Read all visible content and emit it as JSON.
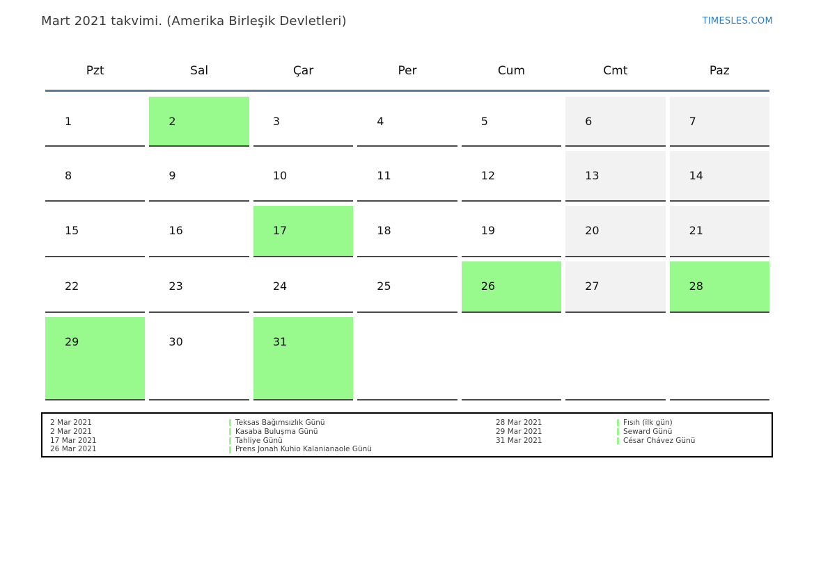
{
  "header": {
    "title": "Mart 2021 takvimi. (Amerika Birleşik Devletleri)",
    "brand": "TIMESLES.COM"
  },
  "colors": {
    "highlight_green": "#98f98c",
    "weekend_gray": "#f2f2f2",
    "header_line_blue": "#5a7a9b",
    "brand_blue": "#2d7cbf",
    "cell_border": "#4a4a4a"
  },
  "calendar": {
    "day_headers": [
      "Pzt",
      "Sal",
      "Çar",
      "Per",
      "Cum",
      "Cmt",
      "Paz"
    ],
    "weeks": [
      [
        {
          "day": "1"
        },
        {
          "day": "2",
          "highlight": true
        },
        {
          "day": "3"
        },
        {
          "day": "4"
        },
        {
          "day": "5"
        },
        {
          "day": "6",
          "weekend": true
        },
        {
          "day": "7",
          "weekend": true
        }
      ],
      [
        {
          "day": "8"
        },
        {
          "day": "9"
        },
        {
          "day": "10"
        },
        {
          "day": "11"
        },
        {
          "day": "12"
        },
        {
          "day": "13",
          "weekend": true
        },
        {
          "day": "14",
          "weekend": true
        }
      ],
      [
        {
          "day": "15"
        },
        {
          "day": "16"
        },
        {
          "day": "17",
          "highlight": true
        },
        {
          "day": "18"
        },
        {
          "day": "19"
        },
        {
          "day": "20",
          "weekend": true
        },
        {
          "day": "21",
          "weekend": true
        }
      ],
      [
        {
          "day": "22"
        },
        {
          "day": "23"
        },
        {
          "day": "24"
        },
        {
          "day": "25"
        },
        {
          "day": "26",
          "highlight": true
        },
        {
          "day": "27",
          "weekend": true
        },
        {
          "day": "28",
          "highlight": true
        }
      ],
      [
        {
          "day": "29",
          "highlight": true
        },
        {
          "day": "30"
        },
        {
          "day": "31",
          "highlight": true
        },
        {
          "day": "",
          "empty": true
        },
        {
          "day": "",
          "empty": true
        },
        {
          "day": "",
          "empty": true
        },
        {
          "day": "",
          "empty": true
        }
      ]
    ]
  },
  "legend": {
    "groups": [
      {
        "entries": [
          {
            "date": "2 Mar 2021",
            "name": "Teksas Bağımsızlık Günü"
          },
          {
            "date": "2 Mar 2021",
            "name": "Kasaba Buluşma Günü"
          },
          {
            "date": "17 Mar 2021",
            "name": "Tahliye Günü"
          },
          {
            "date": "26 Mar 2021",
            "name": "Prens Jonah Kuhio Kalanianaole Günü"
          }
        ]
      },
      {
        "entries": [
          {
            "date": "28 Mar 2021",
            "name": "Fısıh (ilk gün)"
          },
          {
            "date": "29 Mar 2021",
            "name": "Seward Günü"
          },
          {
            "date": "31 Mar 2021",
            "name": "César Chávez Günü"
          }
        ]
      }
    ]
  }
}
